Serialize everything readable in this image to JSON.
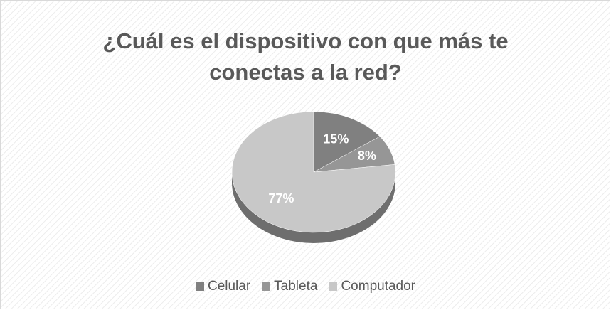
{
  "chart_data": {
    "type": "pie",
    "title": "¿Cuál es el dispositivo con que más te conectas a la red?",
    "categories": [
      "Celular",
      "Tableta",
      "Computador"
    ],
    "values": [
      15,
      8,
      77
    ],
    "value_labels": [
      "15%",
      "8%",
      "77%"
    ],
    "colors": [
      "#808080",
      "#969696",
      "#c8c8c8"
    ],
    "legend": "bottom"
  }
}
